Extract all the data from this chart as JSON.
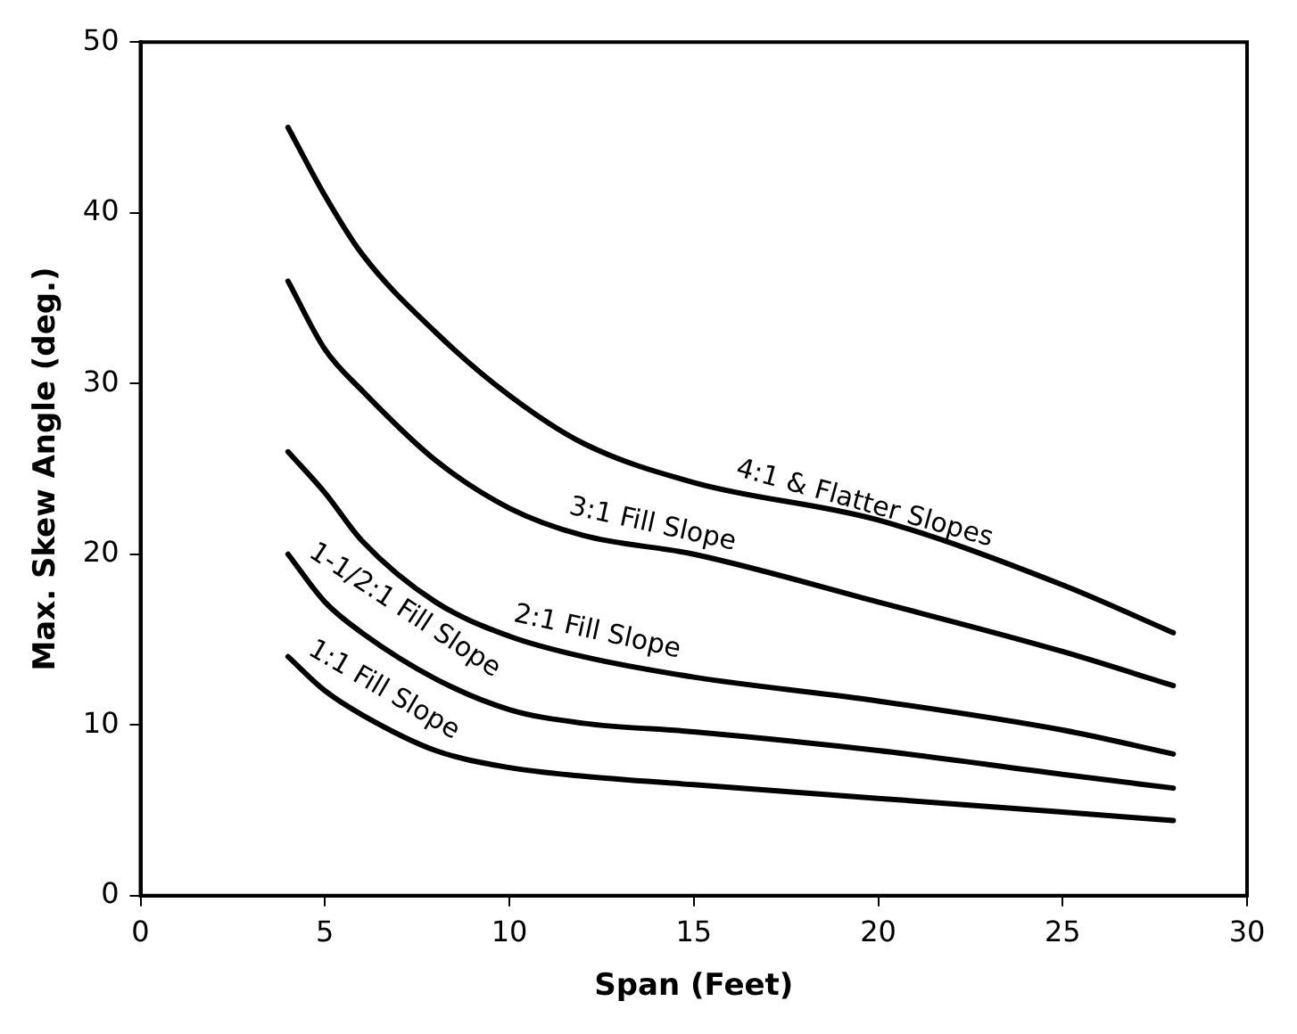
{
  "chart_data": {
    "type": "line",
    "xlabel": "Span (Feet)",
    "ylabel": "Max. Skew Angle (deg.)",
    "xlim": [
      0,
      30
    ],
    "xticks": [
      0,
      5,
      10,
      15,
      20,
      25,
      30
    ],
    "ylim": [
      0,
      50
    ],
    "yticks": [
      0,
      10,
      20,
      30,
      40,
      50
    ],
    "grid": false,
    "legend": false,
    "marker": "none",
    "line_style": "solid",
    "series": [
      {
        "name": "4:1 & Flatter Slopes",
        "color": "#000000",
        "x": [
          4,
          5,
          6,
          8,
          10,
          12,
          15,
          20,
          25,
          28
        ],
        "values": [
          45,
          41,
          37.6,
          33,
          29.3,
          26.5,
          24.2,
          22,
          18.2,
          15.4
        ]
      },
      {
        "name": "3:1 Fill Slope",
        "color": "#000000",
        "x": [
          4,
          5,
          6,
          8,
          10,
          12,
          15,
          20,
          25,
          28
        ],
        "values": [
          36,
          32,
          29.6,
          25.5,
          22.7,
          21.1,
          20,
          17.2,
          14.3,
          12.3
        ]
      },
      {
        "name": "2:1 Fill Slope",
        "color": "#000000",
        "x": [
          4,
          5,
          6,
          8,
          10,
          12,
          15,
          20,
          25,
          28
        ],
        "values": [
          26,
          23.6,
          20.8,
          17.2,
          15.2,
          14,
          12.8,
          11.4,
          9.7,
          8.3
        ]
      },
      {
        "name": "1-1/2:1 Fill Slope",
        "color": "#000000",
        "x": [
          4,
          5,
          6,
          8,
          10,
          12,
          15,
          20,
          25,
          28
        ],
        "values": [
          20,
          17.2,
          15.4,
          12.7,
          10.9,
          10.1,
          9.6,
          8.5,
          7.1,
          6.3
        ]
      },
      {
        "name": "1:1 Fill Slope",
        "color": "#000000",
        "x": [
          4,
          5,
          6,
          8,
          10,
          12,
          15,
          20,
          25,
          28
        ],
        "values": [
          14,
          12,
          10.6,
          8.5,
          7.5,
          7,
          6.5,
          5.7,
          4.9,
          4.4
        ]
      }
    ]
  }
}
